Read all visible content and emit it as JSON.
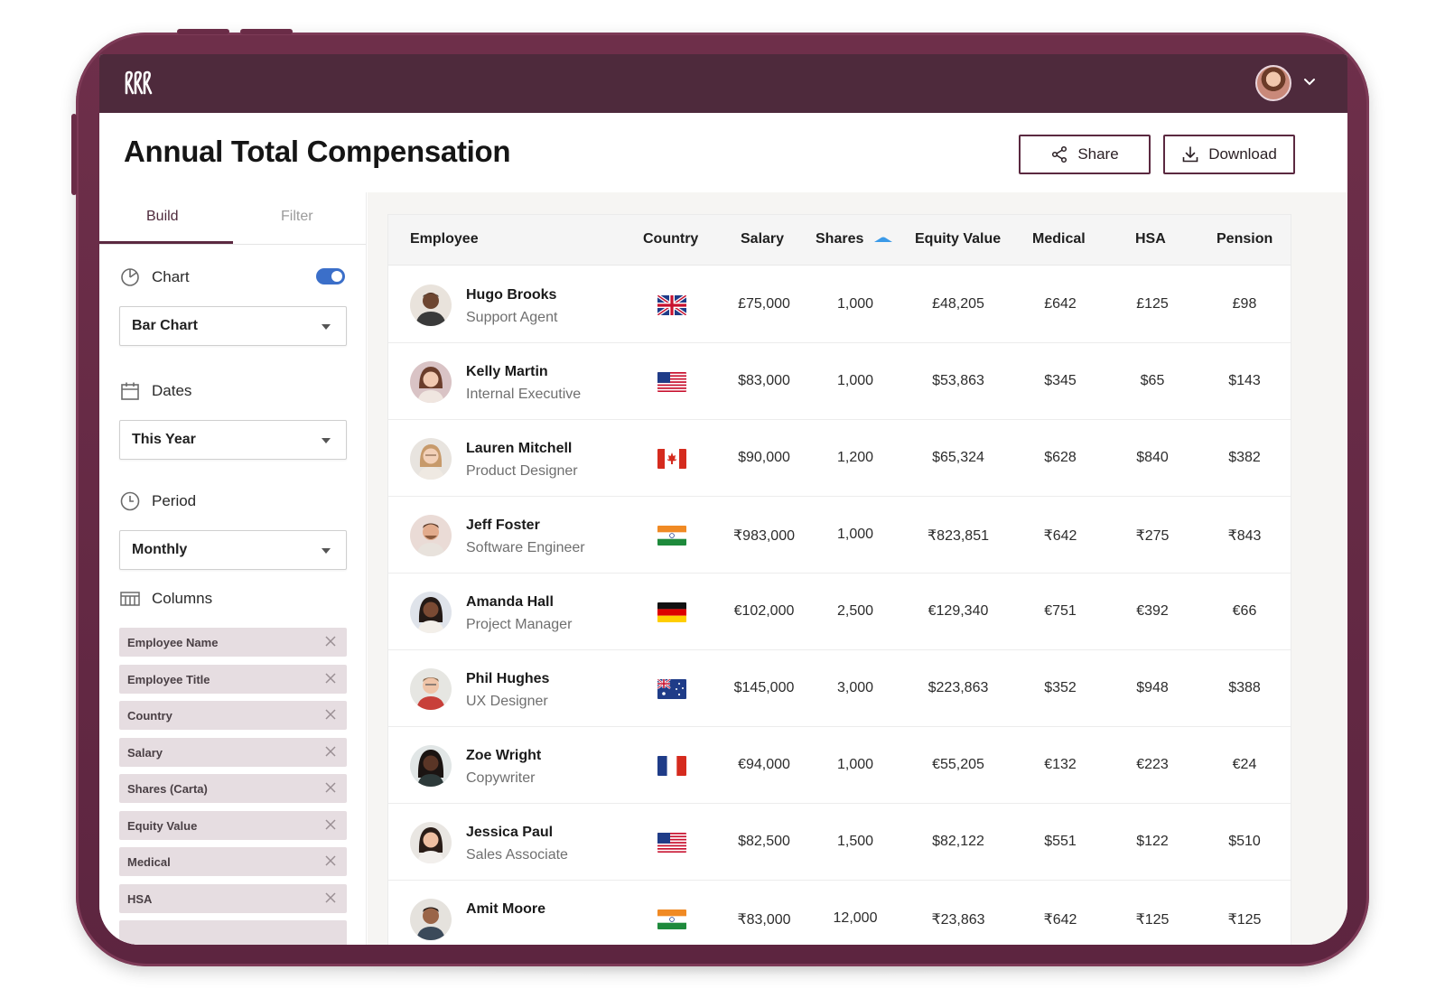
{
  "header": {
    "title": "Annual Total Compensation",
    "share_label": "Share",
    "download_label": "Download"
  },
  "sidebar": {
    "tabs": [
      {
        "label": "Build",
        "active": true
      },
      {
        "label": "Filter",
        "active": false
      }
    ],
    "chart": {
      "label": "Chart",
      "enabled": true,
      "value": "Bar Chart"
    },
    "dates": {
      "label": "Dates",
      "value": "This Year"
    },
    "period": {
      "label": "Period",
      "value": "Monthly"
    },
    "columns": {
      "label": "Columns",
      "items": [
        "Employee Name",
        "Employee Title",
        "Country",
        "Salary",
        "Shares (Carta)",
        "Equity Value",
        "Medical",
        "HSA"
      ]
    }
  },
  "table": {
    "headers": {
      "employee": "Employee",
      "country": "Country",
      "salary": "Salary",
      "shares": "Shares",
      "equity": "Equity Value",
      "medical": "Medical",
      "hsa": "HSA",
      "pension": "Pension"
    },
    "sort_column": "Shares",
    "rows": [
      {
        "name": "Hugo Brooks",
        "title": "Support Agent",
        "country": "United Kingdom",
        "salary": "£75,000",
        "shares": "1,000",
        "equity": "£48,205",
        "medical": "£642",
        "hsa": "£125",
        "pension": "£98"
      },
      {
        "name": "Kelly Martin",
        "title": "Internal Executive",
        "country": "United States",
        "salary": "$83,000",
        "shares": "1,000",
        "equity": "$53,863",
        "medical": "$345",
        "hsa": "$65",
        "pension": "$143"
      },
      {
        "name": "Lauren Mitchell",
        "title": "Product Designer",
        "country": "Canada",
        "salary": "$90,000",
        "shares": "1,200",
        "equity": "$65,324",
        "medical": "$628",
        "hsa": "$840",
        "pension": "$382"
      },
      {
        "name": "Jeff Foster",
        "title": "Software Engineer",
        "country": "India",
        "salary": "₹983,000",
        "shares": "1,000",
        "equity": "₹823,851",
        "medical": "₹642",
        "hsa": "₹275",
        "pension": "₹843"
      },
      {
        "name": "Amanda Hall",
        "title": "Project Manager",
        "country": "Germany",
        "salary": "€102,000",
        "shares": "2,500",
        "equity": "€129,340",
        "medical": "€751",
        "hsa": "€392",
        "pension": "€66"
      },
      {
        "name": "Phil Hughes",
        "title": "UX Designer",
        "country": "Australia",
        "salary": "$145,000",
        "shares": "3,000",
        "equity": "$223,863",
        "medical": "$352",
        "hsa": "$948",
        "pension": "$388"
      },
      {
        "name": "Zoe Wright",
        "title": "Copywriter",
        "country": "France",
        "salary": "€94,000",
        "shares": "1,000",
        "equity": "€55,205",
        "medical": "€132",
        "hsa": "€223",
        "pension": "€24"
      },
      {
        "name": "Jessica Paul",
        "title": "Sales Associate",
        "country": "United States",
        "salary": "$82,500",
        "shares": "1,500",
        "equity": "$82,122",
        "medical": "$551",
        "hsa": "$122",
        "pension": "$510"
      },
      {
        "name": "Amit Moore",
        "title": "",
        "country": "India",
        "salary": "₹83,000",
        "shares": "12,000",
        "equity": "₹23,863",
        "medical": "₹642",
        "hsa": "₹125",
        "pension": "₹125"
      }
    ]
  },
  "colors": {
    "brand": "#5b2940",
    "topbar": "#4e2a3c",
    "toggle_on": "#3b6fc9",
    "chip_bg": "#e6dde1"
  },
  "icons": {
    "logo": "brand-logo-icon",
    "share": "share-icon",
    "download": "download-icon",
    "chart": "pie-chart-icon",
    "dates": "calendar-icon",
    "period": "clock-icon",
    "columns": "columns-icon",
    "remove": "close-icon",
    "sort": "sort-ascending-icon"
  }
}
